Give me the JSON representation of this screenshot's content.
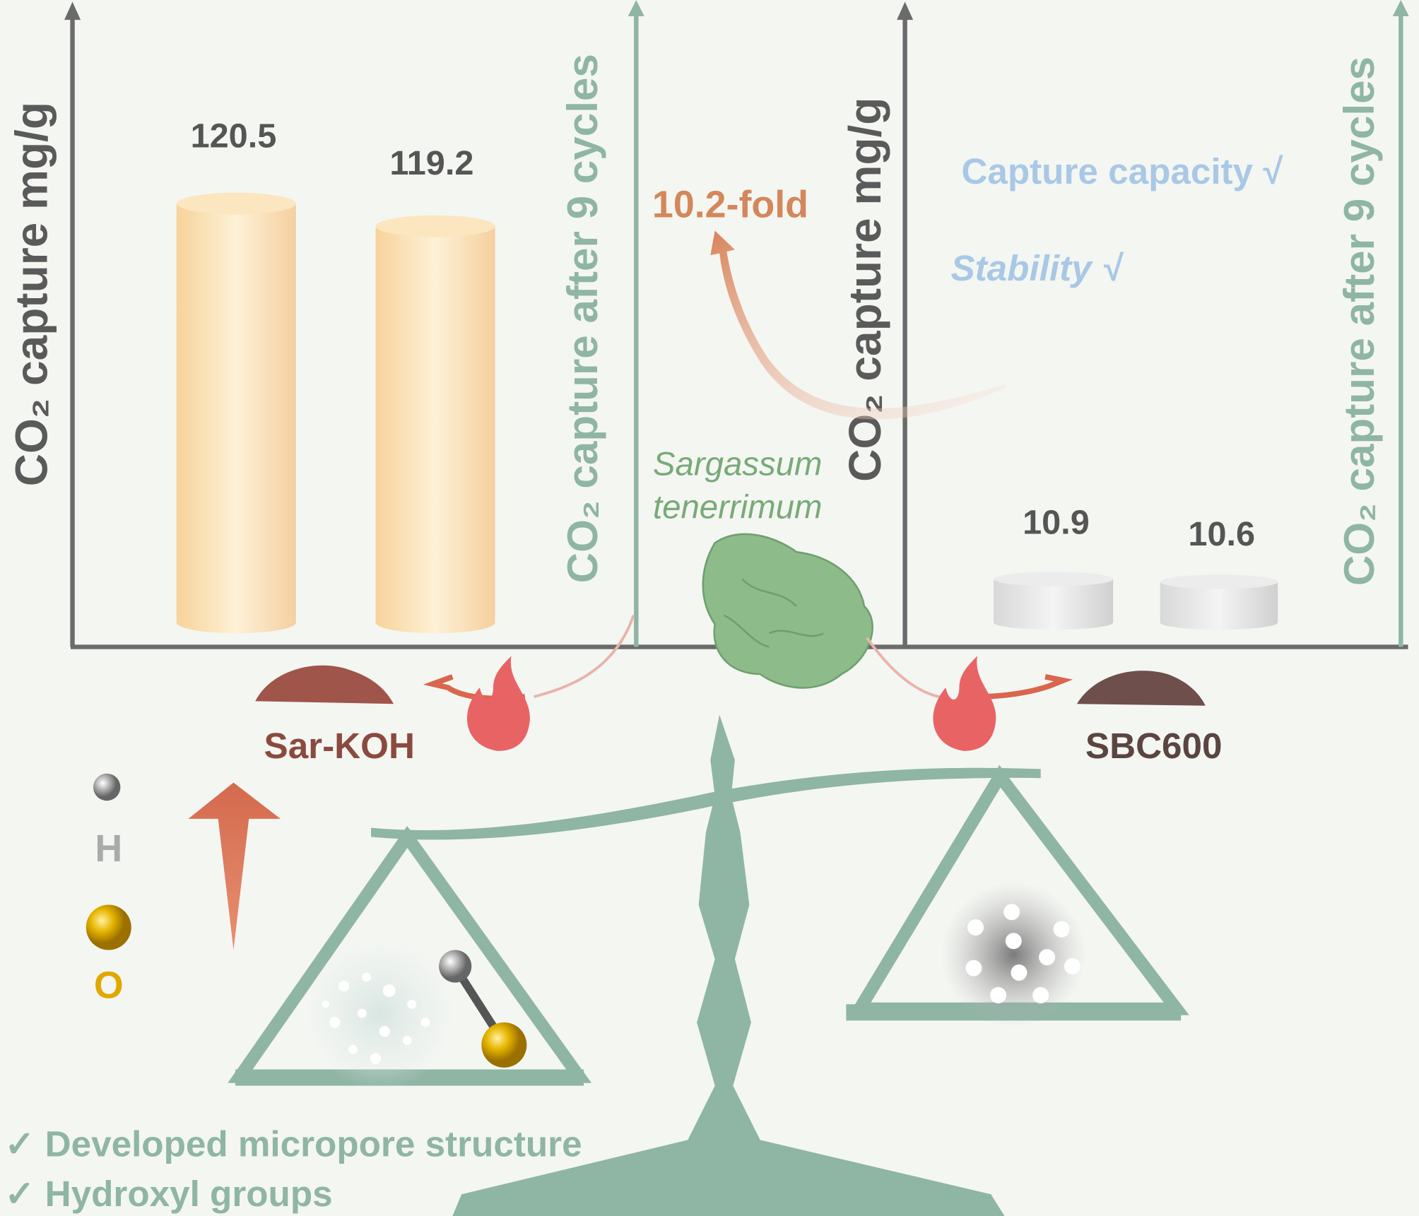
{
  "panels": [
    {
      "y_label": "CO₂ capture mg/g",
      "y2_label": "CO₂ capture after 9 cycles",
      "values": [
        "120.5",
        "119.2"
      ],
      "product": "Sar-KOH"
    },
    {
      "y_label": "CO₂ capture mg/g",
      "y2_label": "CO₂ capture after 9 cycles",
      "values": [
        "10.9",
        "10.6"
      ],
      "product": "SBC600"
    }
  ],
  "fold": "10.2-fold",
  "species": [
    "Sargassum",
    "tenerrimum"
  ],
  "checks": [
    "Capture capacity  √",
    "Stability  √"
  ],
  "legend": [
    "H",
    "O"
  ],
  "features": [
    "✓ Developed micropore structure",
    "✓ Hydroxyl groups"
  ]
}
